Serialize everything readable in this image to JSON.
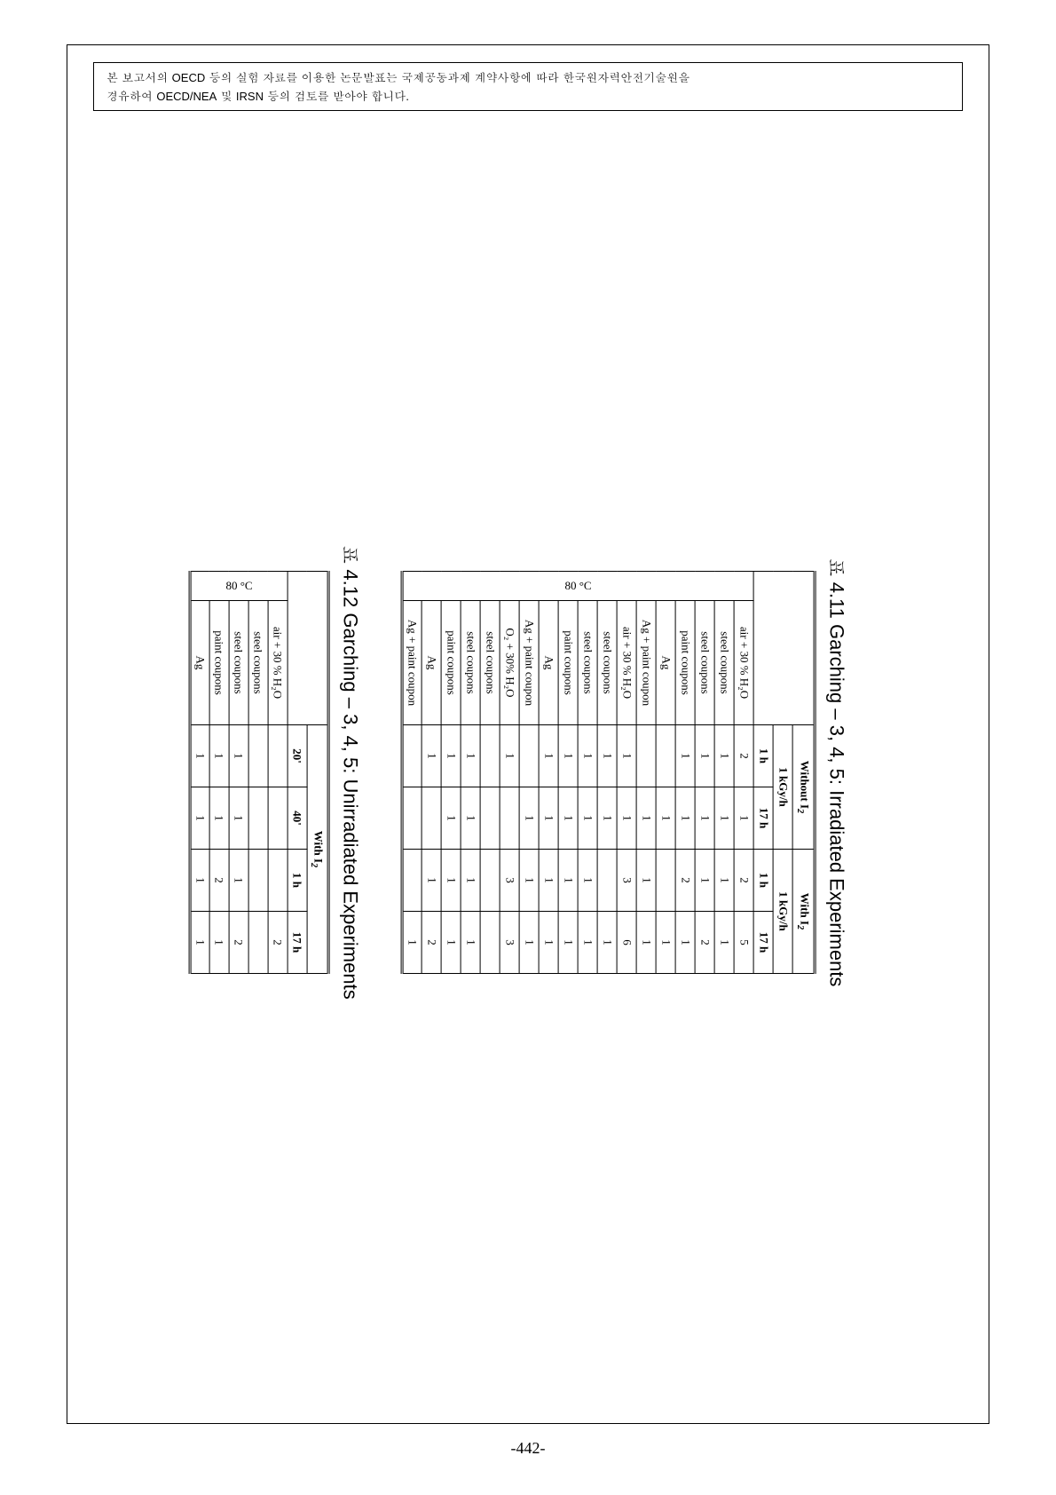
{
  "notice": {
    "line1_pre": "본 보고서의 ",
    "line1_eng1": "OECD",
    "line1_mid": " 등의 실험 자료를 이용한 논문발표는 국제공동과제 계약사항에 따라  한국원자력안전기술원을",
    "line2_pre": "경유하여 ",
    "line2_eng1": "OECD/NEA",
    "line2_mid": " 및 ",
    "line2_eng2": "IRSN",
    "line2_post": " 등의 검토를 받아야 합니다."
  },
  "caption1": {
    "pre": "표",
    "num": "4.11",
    "name": "Garching – 3, 4, 5: Irradiated Experiments"
  },
  "caption2": {
    "pre": "표",
    "num": "4.12",
    "name": "Garching – 3, 4, 5: Unirradiated Experiments"
  },
  "table1": {
    "head": {
      "without": "Without I",
      "with": "With I",
      "sub2": "2",
      "dose": "1 kGy/h",
      "h1": "1 h",
      "h17": "17 h"
    },
    "side": "80 °C",
    "rows": [
      {
        "label": "air + 30 % H₂O",
        "c": [
          "2",
          "1",
          "2",
          "5"
        ]
      },
      {
        "label": "steel coupons",
        "c": [
          "1",
          "1",
          "1",
          "1"
        ]
      },
      {
        "label": "steel coupons",
        "c": [
          "1",
          "1",
          "1",
          "2"
        ]
      },
      {
        "label": "paint coupons",
        "c": [
          "1",
          "1",
          "2",
          "1"
        ]
      },
      {
        "label": "Ag",
        "c": [
          "",
          "1",
          "",
          "1"
        ]
      },
      {
        "label": "Ag + paint coupon",
        "c": [
          "",
          "1",
          "1",
          "1"
        ]
      },
      {
        "label": "air + 30 % H₂O",
        "c": [
          "1",
          "1",
          "3",
          "6"
        ]
      },
      {
        "label": "steel coupons",
        "c": [
          "1",
          "1",
          "",
          "1"
        ]
      },
      {
        "label": "steel coupons",
        "c": [
          "1",
          "1",
          "1",
          "1"
        ]
      },
      {
        "label": "paint coupons",
        "c": [
          "1",
          "1",
          "1",
          "1"
        ]
      },
      {
        "label": "Ag",
        "c": [
          "1",
          "1",
          "1",
          "1"
        ]
      },
      {
        "label": "Ag + paint coupon",
        "c": [
          "",
          "1",
          "1",
          "1"
        ]
      },
      {
        "label": "O₂ + 30% H₂O",
        "c": [
          "1",
          "",
          "3",
          "3"
        ]
      },
      {
        "label": "steel coupons",
        "c": [
          "",
          "",
          "",
          ""
        ]
      },
      {
        "label": "steel coupons",
        "c": [
          "1",
          "1",
          "1",
          "1"
        ]
      },
      {
        "label": "paint coupons",
        "c": [
          "1",
          "1",
          "1",
          "1"
        ]
      },
      {
        "label": "Ag",
        "c": [
          "1",
          "",
          "1",
          "2"
        ]
      },
      {
        "label": "Ag + paint coupon",
        "c": [
          "",
          "",
          "",
          "1"
        ]
      }
    ]
  },
  "table2": {
    "head": {
      "with": "With I",
      "sub2": "2",
      "h20": "20'",
      "h40": "40'",
      "h1": "1 h",
      "h17": "17 h"
    },
    "side": "80 °C",
    "rows": [
      {
        "label": "air + 30 % H₂O",
        "c": [
          "",
          "",
          "",
          "2"
        ]
      },
      {
        "label": "steel coupons",
        "c": [
          "",
          "",
          "",
          ""
        ]
      },
      {
        "label": "steel coupons",
        "c": [
          "1",
          "1",
          "1",
          "2"
        ]
      },
      {
        "label": "paint coupons",
        "c": [
          "1",
          "1",
          "2",
          "1"
        ]
      },
      {
        "label": "Ag",
        "c": [
          "1",
          "1",
          "1",
          "1"
        ]
      }
    ]
  },
  "page": "-442-"
}
